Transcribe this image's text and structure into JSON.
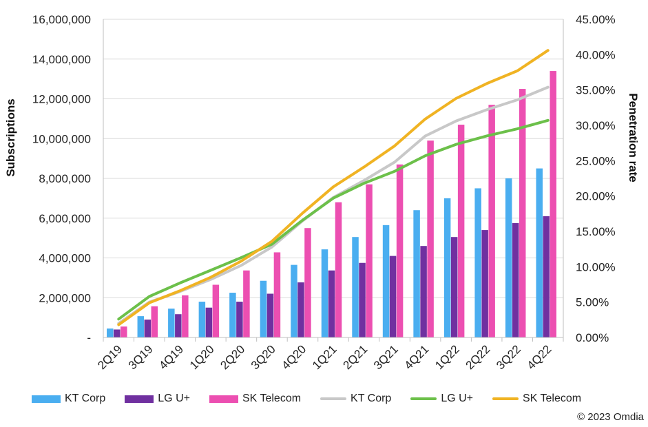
{
  "chart_data": {
    "type": "bar",
    "categories": [
      "2Q19",
      "3Q19",
      "4Q19",
      "1Q20",
      "2Q20",
      "3Q20",
      "4Q20",
      "1Q21",
      "2Q21",
      "3Q21",
      "4Q21",
      "1Q22",
      "2Q22",
      "3Q22",
      "4Q22"
    ],
    "series": [
      {
        "name": "KT Corp",
        "type": "bar",
        "axis": "left",
        "color": "#4aaef0",
        "values": [
          450000,
          1070000,
          1450000,
          1800000,
          2250000,
          2850000,
          3650000,
          4430000,
          5050000,
          5650000,
          6400000,
          7000000,
          7500000,
          8000000,
          8500000
        ]
      },
      {
        "name": "LG U+",
        "type": "bar",
        "axis": "left",
        "color": "#7030a0",
        "values": [
          400000,
          900000,
          1170000,
          1500000,
          1800000,
          2200000,
          2770000,
          3370000,
          3750000,
          4100000,
          4600000,
          5050000,
          5400000,
          5750000,
          6100000
        ]
      },
      {
        "name": "SK Telecom",
        "type": "bar",
        "axis": "left",
        "color": "#ec4fb1",
        "values": [
          550000,
          1570000,
          2120000,
          2650000,
          3370000,
          4280000,
          5500000,
          6800000,
          7700000,
          8700000,
          9900000,
          10700000,
          11700000,
          12500000,
          13400000
        ]
      },
      {
        "name": "KT Corp",
        "type": "line",
        "axis": "right",
        "color": "#c8c8c8",
        "values": [
          2.0,
          5.0,
          6.5,
          8.2,
          10.2,
          12.8,
          16.5,
          19.8,
          22.2,
          24.8,
          28.5,
          30.6,
          32.2,
          33.6,
          35.4
        ]
      },
      {
        "name": "LG U+",
        "type": "line",
        "axis": "right",
        "color": "#6cc04a",
        "values": [
          2.6,
          5.8,
          7.7,
          9.5,
          11.3,
          13.2,
          16.6,
          19.7,
          21.8,
          23.5,
          25.7,
          27.3,
          28.5,
          29.5,
          30.7
        ]
      },
      {
        "name": "SK Telecom",
        "type": "line",
        "axis": "right",
        "color": "#f0b323",
        "values": [
          1.8,
          4.9,
          6.6,
          8.5,
          10.8,
          13.6,
          17.6,
          21.3,
          24.1,
          27.1,
          30.9,
          33.8,
          35.9,
          37.7,
          40.6
        ]
      }
    ],
    "ylabel": "Subscriptions",
    "ylim": [
      0,
      16000000
    ],
    "yticks": [
      "-",
      "2,000,000",
      "4,000,000",
      "6,000,000",
      "8,000,000",
      "10,000,000",
      "12,000,000",
      "14,000,000",
      "16,000,000"
    ],
    "y2label": "Penetration rate",
    "y2lim": [
      0,
      45
    ],
    "y2ticks": [
      "0.00%",
      "5.00%",
      "10.00%",
      "15.00%",
      "20.00%",
      "25.00%",
      "30.00%",
      "35.00%",
      "40.00%",
      "45.00%"
    ],
    "legend": "bottom",
    "copyright": "© 2023 Omdia"
  }
}
